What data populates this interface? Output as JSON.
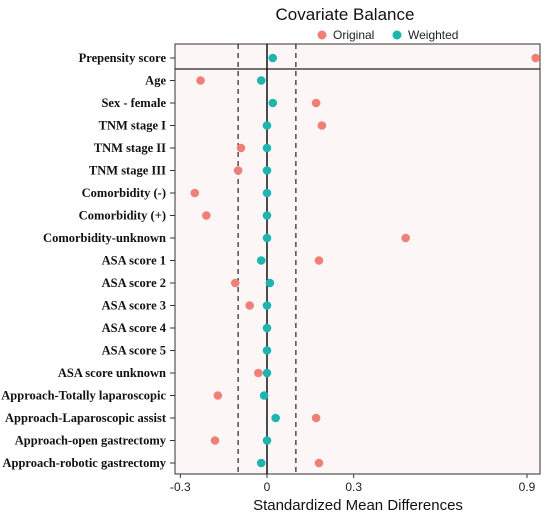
{
  "chart_data": {
    "type": "scatter",
    "title": "Covariate Balance",
    "xlabel": "Standardized Mean Differences",
    "ylabel": "",
    "xlim": [
      -0.33,
      0.98
    ],
    "x_ticks": [
      -0.3,
      0,
      0.3,
      0.9
    ],
    "x_tick_labels": [
      "-0.3",
      "0",
      "0.3",
      "0.9"
    ],
    "reference_lines": {
      "solid": [
        0
      ],
      "dashed": [
        -0.1,
        0.1
      ]
    },
    "legend_position": "top",
    "categories": [
      "Prepensity score",
      "Age",
      "Sex - female",
      "TNM stage I",
      "TNM stage II",
      "TNM stage III",
      "Comorbidity (-)",
      "Comorbidity (+)",
      "Comorbidity-unknown",
      "ASA score 1",
      "ASA score 2",
      "ASA score 3",
      "ASA score 4",
      "ASA score 5",
      "ASA score unknown",
      "Approach-Totally laparoscopic",
      "Approach-Laparoscopic assist",
      "Approach-open gastrectomy",
      "Approach-robotic gastrectomy"
    ],
    "series": [
      {
        "name": "Original",
        "color": "#F07F78",
        "values": [
          0.93,
          -0.23,
          0.17,
          0.19,
          -0.09,
          -0.1,
          -0.25,
          -0.21,
          0.48,
          0.18,
          -0.11,
          -0.06,
          null,
          null,
          -0.03,
          -0.17,
          0.17,
          -0.18,
          0.18
        ]
      },
      {
        "name": "Weighted",
        "color": "#1FB5AF",
        "values": [
          0.02,
          -0.02,
          0.02,
          0.0,
          0.0,
          0.0,
          0.0,
          0.0,
          0.0,
          -0.02,
          0.01,
          0.0,
          0.0,
          0.0,
          0.0,
          -0.01,
          0.03,
          0.0,
          -0.02
        ]
      }
    ]
  }
}
